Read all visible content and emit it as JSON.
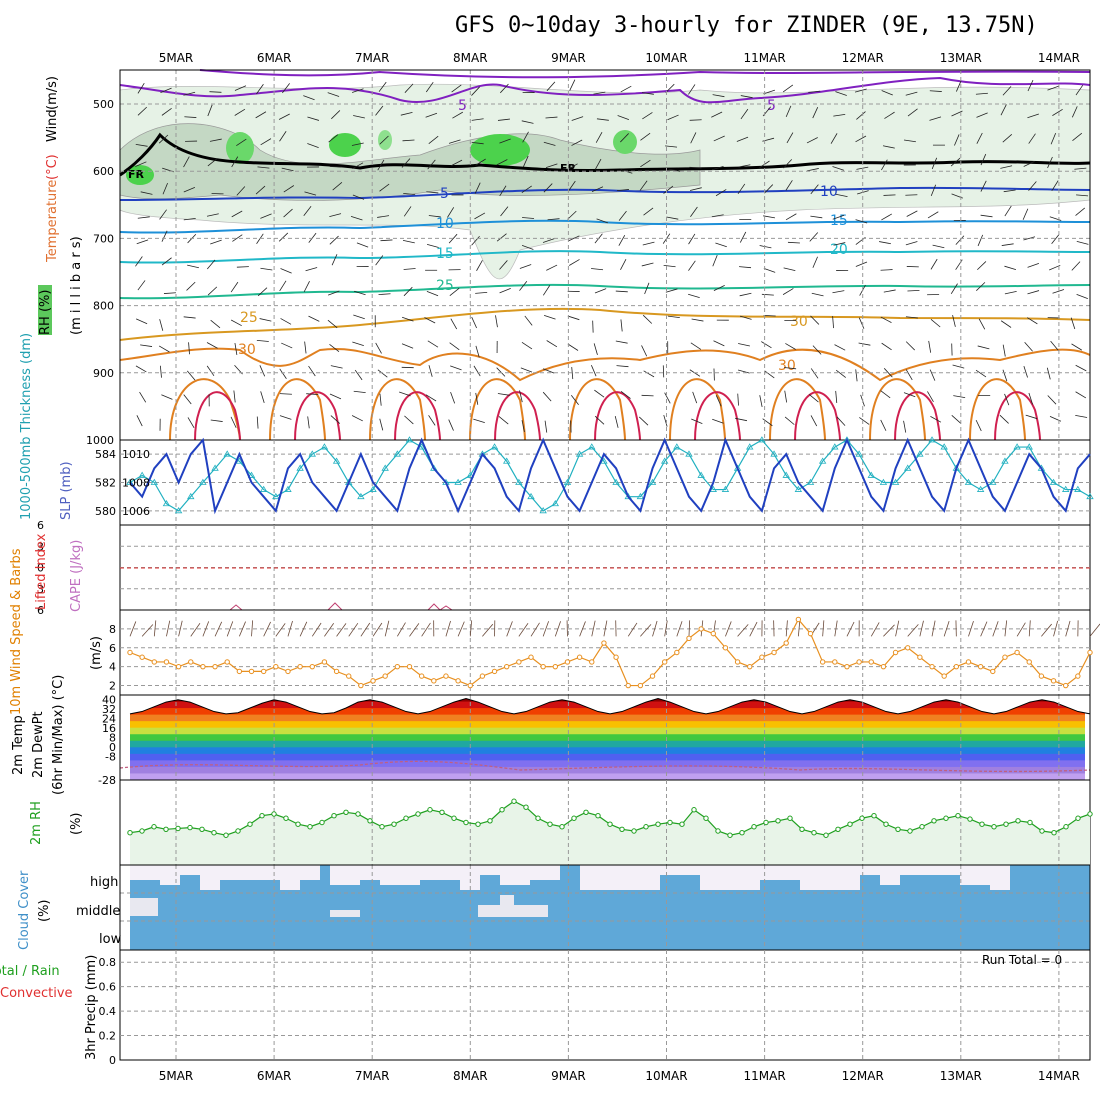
{
  "title": "GFS 0~10day 3-hourly for ZINDER (9E, 13.75N)",
  "dates": [
    "5MAR",
    "6MAR",
    "7MAR",
    "8MAR",
    "9MAR",
    "10MAR",
    "11MAR",
    "12MAR",
    "13MAR",
    "14MAR"
  ],
  "colors": {
    "wind_axis": "#000000",
    "temperature": "#e03030",
    "rh": "#20a020",
    "slp": "#2040c0",
    "thickness": "#20b0c0",
    "cape": "#c060c0",
    "lifted_index": "#e03030",
    "wind10m": "#e08000",
    "dewpt": "#a050d0",
    "rh2m": "#20a020",
    "cloud": "#5fa8d8",
    "convective": "#e03030"
  },
  "panels": {
    "upper": {
      "labels": {
        "wind": "Wind",
        "wind_unit": "(m/s)",
        "temperature": "Temperature",
        "temp_unit": "(°C)",
        "rh": "RH (%)",
        "pressure": "(m i l l i b a r s)"
      },
      "yticks": [
        "500",
        "600",
        "700",
        "800",
        "900",
        "1000"
      ],
      "temp_labels": [
        "5",
        "5",
        "5",
        "10",
        "10",
        "15",
        "15",
        "20",
        "25",
        "25",
        "30",
        "30",
        "FR",
        "FR"
      ]
    },
    "pressure": {
      "labels": {
        "thickness": "1000-500mb Thickness (dm)",
        "slp": "SLP (mb)"
      },
      "left_ticks": [
        "584",
        "582",
        "580"
      ],
      "right_ticks": [
        "1010",
        "1008",
        "1006"
      ]
    },
    "stability": {
      "labels": {
        "lifted_index": "Lifted Index",
        "cape": "CAPE (J/kg)"
      },
      "yticks": [
        "6",
        "3",
        "0",
        "3",
        "6"
      ]
    },
    "wind10m": {
      "labels": {
        "main": "10m Wind Speed & Barbs",
        "unit": "(m/s)"
      },
      "yticks": [
        "8",
        "6",
        "4",
        "2"
      ]
    },
    "temp2m": {
      "labels": {
        "temp": "2m Temp",
        "dewpt": "2m DewPt",
        "minmax": "(6hr Min/Max) (°C)"
      },
      "yticks": [
        "40",
        "32",
        "24",
        "16",
        "8",
        "0",
        "-8",
        "-28"
      ]
    },
    "rh2m": {
      "labels": {
        "main": "2m RH",
        "unit": "(%)"
      }
    },
    "cloud": {
      "labels": {
        "main": "Cloud Cover",
        "unit": "(%)"
      },
      "levels": [
        "high",
        "middle",
        "low"
      ]
    },
    "precip": {
      "labels": {
        "main": "3hr Precip (mm)",
        "total": "Total / Rain",
        "convective": "Convective"
      },
      "run_total": "Run Total = 0",
      "yticks": [
        "0.8",
        "0.6",
        "0.4",
        "0.2",
        "0"
      ]
    }
  },
  "chart_data": [
    {
      "type": "line",
      "name": "SLP (mb)",
      "ylim": [
        1005,
        1011
      ],
      "values": [
        1008,
        1007,
        1009,
        1010,
        1008,
        1010,
        1011,
        1006,
        1008,
        1010,
        1008,
        1007,
        1006,
        1009,
        1010,
        1008,
        1007,
        1006,
        1008,
        1010,
        1008,
        1007,
        1006,
        1009,
        1011,
        1009,
        1008,
        1006,
        1008,
        1010,
        1009,
        1007,
        1006,
        1009,
        1011,
        1009,
        1007,
        1006,
        1008,
        1010,
        1009,
        1007,
        1006,
        1009,
        1011,
        1009,
        1007,
        1006,
        1008,
        1011,
        1009,
        1007,
        1006,
        1009,
        1010,
        1008,
        1007,
        1006,
        1009,
        1011,
        1009,
        1007,
        1006,
        1009,
        1011,
        1009,
        1007,
        1006,
        1009,
        1011,
        1009,
        1007,
        1006,
        1008,
        1010,
        1009,
        1007,
        1006,
        1009,
        1010
      ]
    },
    {
      "type": "line",
      "name": "1000-500mb Thickness (dm)",
      "ylim": [
        579,
        585
      ],
      "values": [
        582,
        582.5,
        582,
        580.5,
        580,
        581,
        582,
        583,
        584,
        583.5,
        582.5,
        581.5,
        581,
        581.5,
        583,
        584,
        584.5,
        583.5,
        582,
        581,
        581.5,
        583,
        584,
        585,
        584.5,
        583,
        582,
        582,
        582.5,
        584,
        584.5,
        583.5,
        582,
        581,
        580,
        580.5,
        582,
        584,
        584.5,
        583.5,
        582,
        581,
        581,
        582,
        583.5,
        584.5,
        584,
        582.5,
        581.5,
        581.5,
        583,
        584.5,
        585,
        584,
        582.5,
        581.5,
        582,
        583.5,
        584.5,
        585,
        584,
        582.5,
        582,
        582,
        583,
        584,
        585,
        584.5,
        583,
        582,
        581.5,
        582,
        583.5,
        584.5,
        584.5,
        583,
        582,
        581.5,
        581.5,
        581
      ]
    },
    {
      "type": "line",
      "name": "10m Wind Speed (m/s)",
      "ylim": [
        1,
        10
      ],
      "values": [
        5.5,
        5,
        4.5,
        4.5,
        4,
        4.5,
        4,
        4,
        4.5,
        3.5,
        3.5,
        3.5,
        4,
        3.5,
        4,
        4,
        4.5,
        3.5,
        3,
        2,
        2.5,
        3,
        4,
        4,
        3,
        2.5,
        3,
        2.5,
        2,
        3,
        3.5,
        4,
        4.5,
        5,
        4,
        4,
        4.5,
        5,
        4.5,
        6.5,
        5,
        2,
        2,
        3,
        4.5,
        5.5,
        7,
        8,
        7.5,
        6,
        4.5,
        4,
        5,
        5.5,
        6.5,
        9,
        7.5,
        4.5,
        4.5,
        4,
        4.5,
        4.5,
        4,
        5.5,
        6,
        5,
        4,
        3,
        4,
        4.5,
        4,
        3.5,
        5,
        5.5,
        4.5,
        3,
        2.5,
        2,
        3,
        5.5
      ]
    },
    {
      "type": "line",
      "name": "2m RH (%)",
      "ylim": [
        0,
        100
      ],
      "values": [
        38,
        40,
        45,
        42,
        43,
        44,
        42,
        38,
        35,
        40,
        48,
        58,
        60,
        55,
        48,
        45,
        50,
        58,
        62,
        60,
        52,
        45,
        48,
        55,
        60,
        65,
        62,
        55,
        50,
        48,
        52,
        65,
        75,
        68,
        55,
        48,
        45,
        55,
        62,
        58,
        48,
        42,
        40,
        45,
        48,
        50,
        48,
        65,
        55,
        40,
        35,
        38,
        45,
        50,
        52,
        55,
        42,
        38,
        35,
        42,
        48,
        55,
        58,
        48,
        42,
        40,
        45,
        52,
        55,
        58,
        54,
        48,
        45,
        48,
        52,
        50,
        40,
        38,
        45,
        55,
        60
      ]
    },
    {
      "type": "area",
      "name": "2m Temp (°C)",
      "ylim": [
        -28,
        44
      ],
      "values": [
        28,
        30,
        34,
        38,
        40,
        38,
        34,
        30,
        28,
        29,
        33,
        37,
        40,
        38,
        34,
        30,
        28,
        29,
        33,
        38,
        40,
        38,
        34,
        30,
        28,
        30,
        34,
        38,
        41,
        38,
        34,
        30,
        28,
        30,
        34,
        38,
        40,
        38,
        34,
        30,
        28,
        30,
        34,
        38,
        41,
        38,
        34,
        30,
        28,
        30,
        34,
        38,
        40,
        38,
        34,
        30,
        28,
        30,
        34,
        38,
        40,
        38,
        34,
        30,
        28,
        30,
        34,
        38,
        40,
        38,
        34,
        30,
        28,
        30,
        34,
        38,
        40,
        38,
        34,
        30,
        28
      ]
    },
    {
      "type": "bar",
      "name": "3hr Precip (mm)",
      "ylim": [
        0,
        0.9
      ],
      "values": [
        0,
        0,
        0,
        0,
        0,
        0,
        0,
        0,
        0,
        0,
        0,
        0,
        0,
        0,
        0,
        0,
        0,
        0,
        0,
        0,
        0,
        0,
        0,
        0,
        0,
        0,
        0,
        0,
        0,
        0,
        0,
        0,
        0,
        0,
        0,
        0,
        0,
        0,
        0,
        0,
        0,
        0,
        0,
        0,
        0,
        0,
        0,
        0,
        0,
        0,
        0,
        0,
        0,
        0,
        0,
        0,
        0,
        0,
        0,
        0,
        0,
        0,
        0,
        0,
        0,
        0,
        0,
        0,
        0,
        0,
        0,
        0,
        0,
        0,
        0,
        0,
        0,
        0,
        0,
        0,
        0
      ]
    }
  ]
}
